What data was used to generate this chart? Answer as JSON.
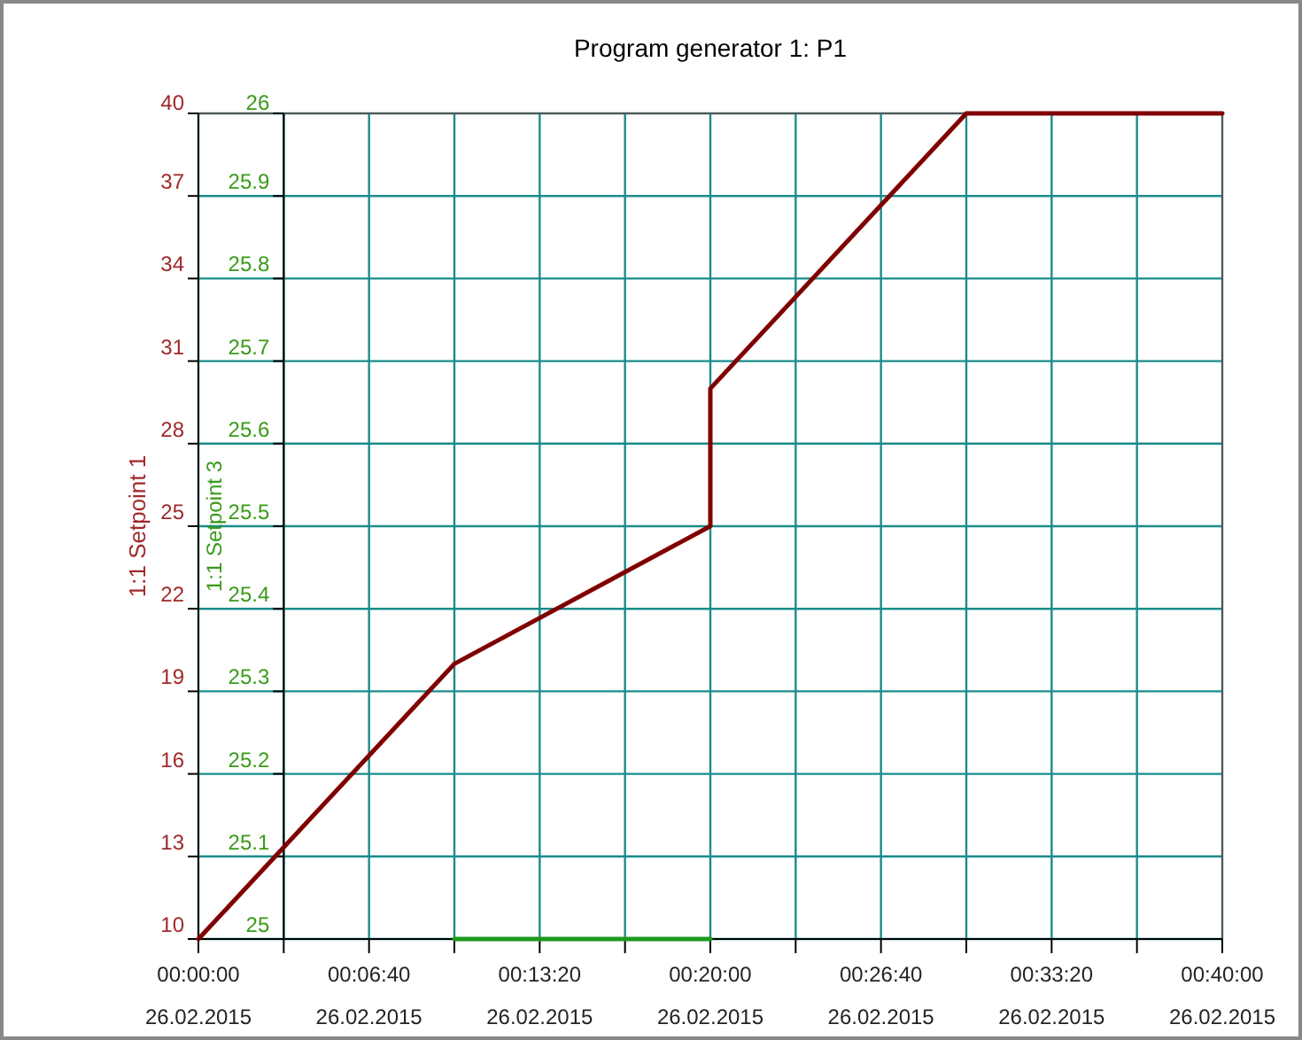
{
  "chart_data": {
    "type": "line",
    "title": "Program generator 1: P1",
    "ylabel": "1:1 Setpoint 1",
    "y2label": "1:1 Setpoint 3",
    "xlim": [
      0,
      0.66667
    ],
    "xticks": [
      {
        "value": 0,
        "label": "00:00:00"
      },
      {
        "value": 0.05556,
        "label": null
      },
      {
        "value": 0.11111,
        "label": "00:06:40"
      },
      {
        "value": 0.16667,
        "label": null
      },
      {
        "value": 0.22222,
        "label": "00:13:20"
      },
      {
        "value": 0.27778,
        "label": null
      },
      {
        "value": 0.33333,
        "label": "00:20:00"
      },
      {
        "value": 0.38889,
        "label": null
      },
      {
        "value": 0.44444,
        "label": "00:26:40"
      },
      {
        "value": 0.5,
        "label": null
      },
      {
        "value": 0.55556,
        "label": "00:33:20"
      },
      {
        "value": 0.61111,
        "label": null
      },
      {
        "value": 0.66667,
        "label": "00:40:00"
      }
    ],
    "annotations": [
      "26.02.2015",
      "26.02.2015",
      "26.02.2015",
      "26.02.2015",
      "26.02.2015",
      "26.02.2015",
      "26.02.2015"
    ],
    "ylim": [
      10,
      40
    ],
    "yticks": [
      10,
      13,
      16,
      19,
      22,
      25,
      28,
      31,
      34,
      37,
      40
    ],
    "y2lim": [
      25,
      26
    ],
    "y2ticks": [
      25,
      25.1,
      25.2,
      25.3,
      25.4,
      25.5,
      25.6,
      25.7,
      25.8,
      25.9,
      26
    ],
    "grid": true,
    "series": [
      {
        "color": "#800000",
        "x": [
          0,
          0.16667,
          0.33333,
          0.33333,
          0.5,
          0.66667
        ],
        "values": [
          10,
          20,
          25,
          30,
          40,
          40
        ]
      },
      {
        "color": "#1f9a1f",
        "axis": "y2",
        "x": [
          0.16667,
          0.33333
        ],
        "values": [
          25,
          25
        ]
      }
    ]
  }
}
